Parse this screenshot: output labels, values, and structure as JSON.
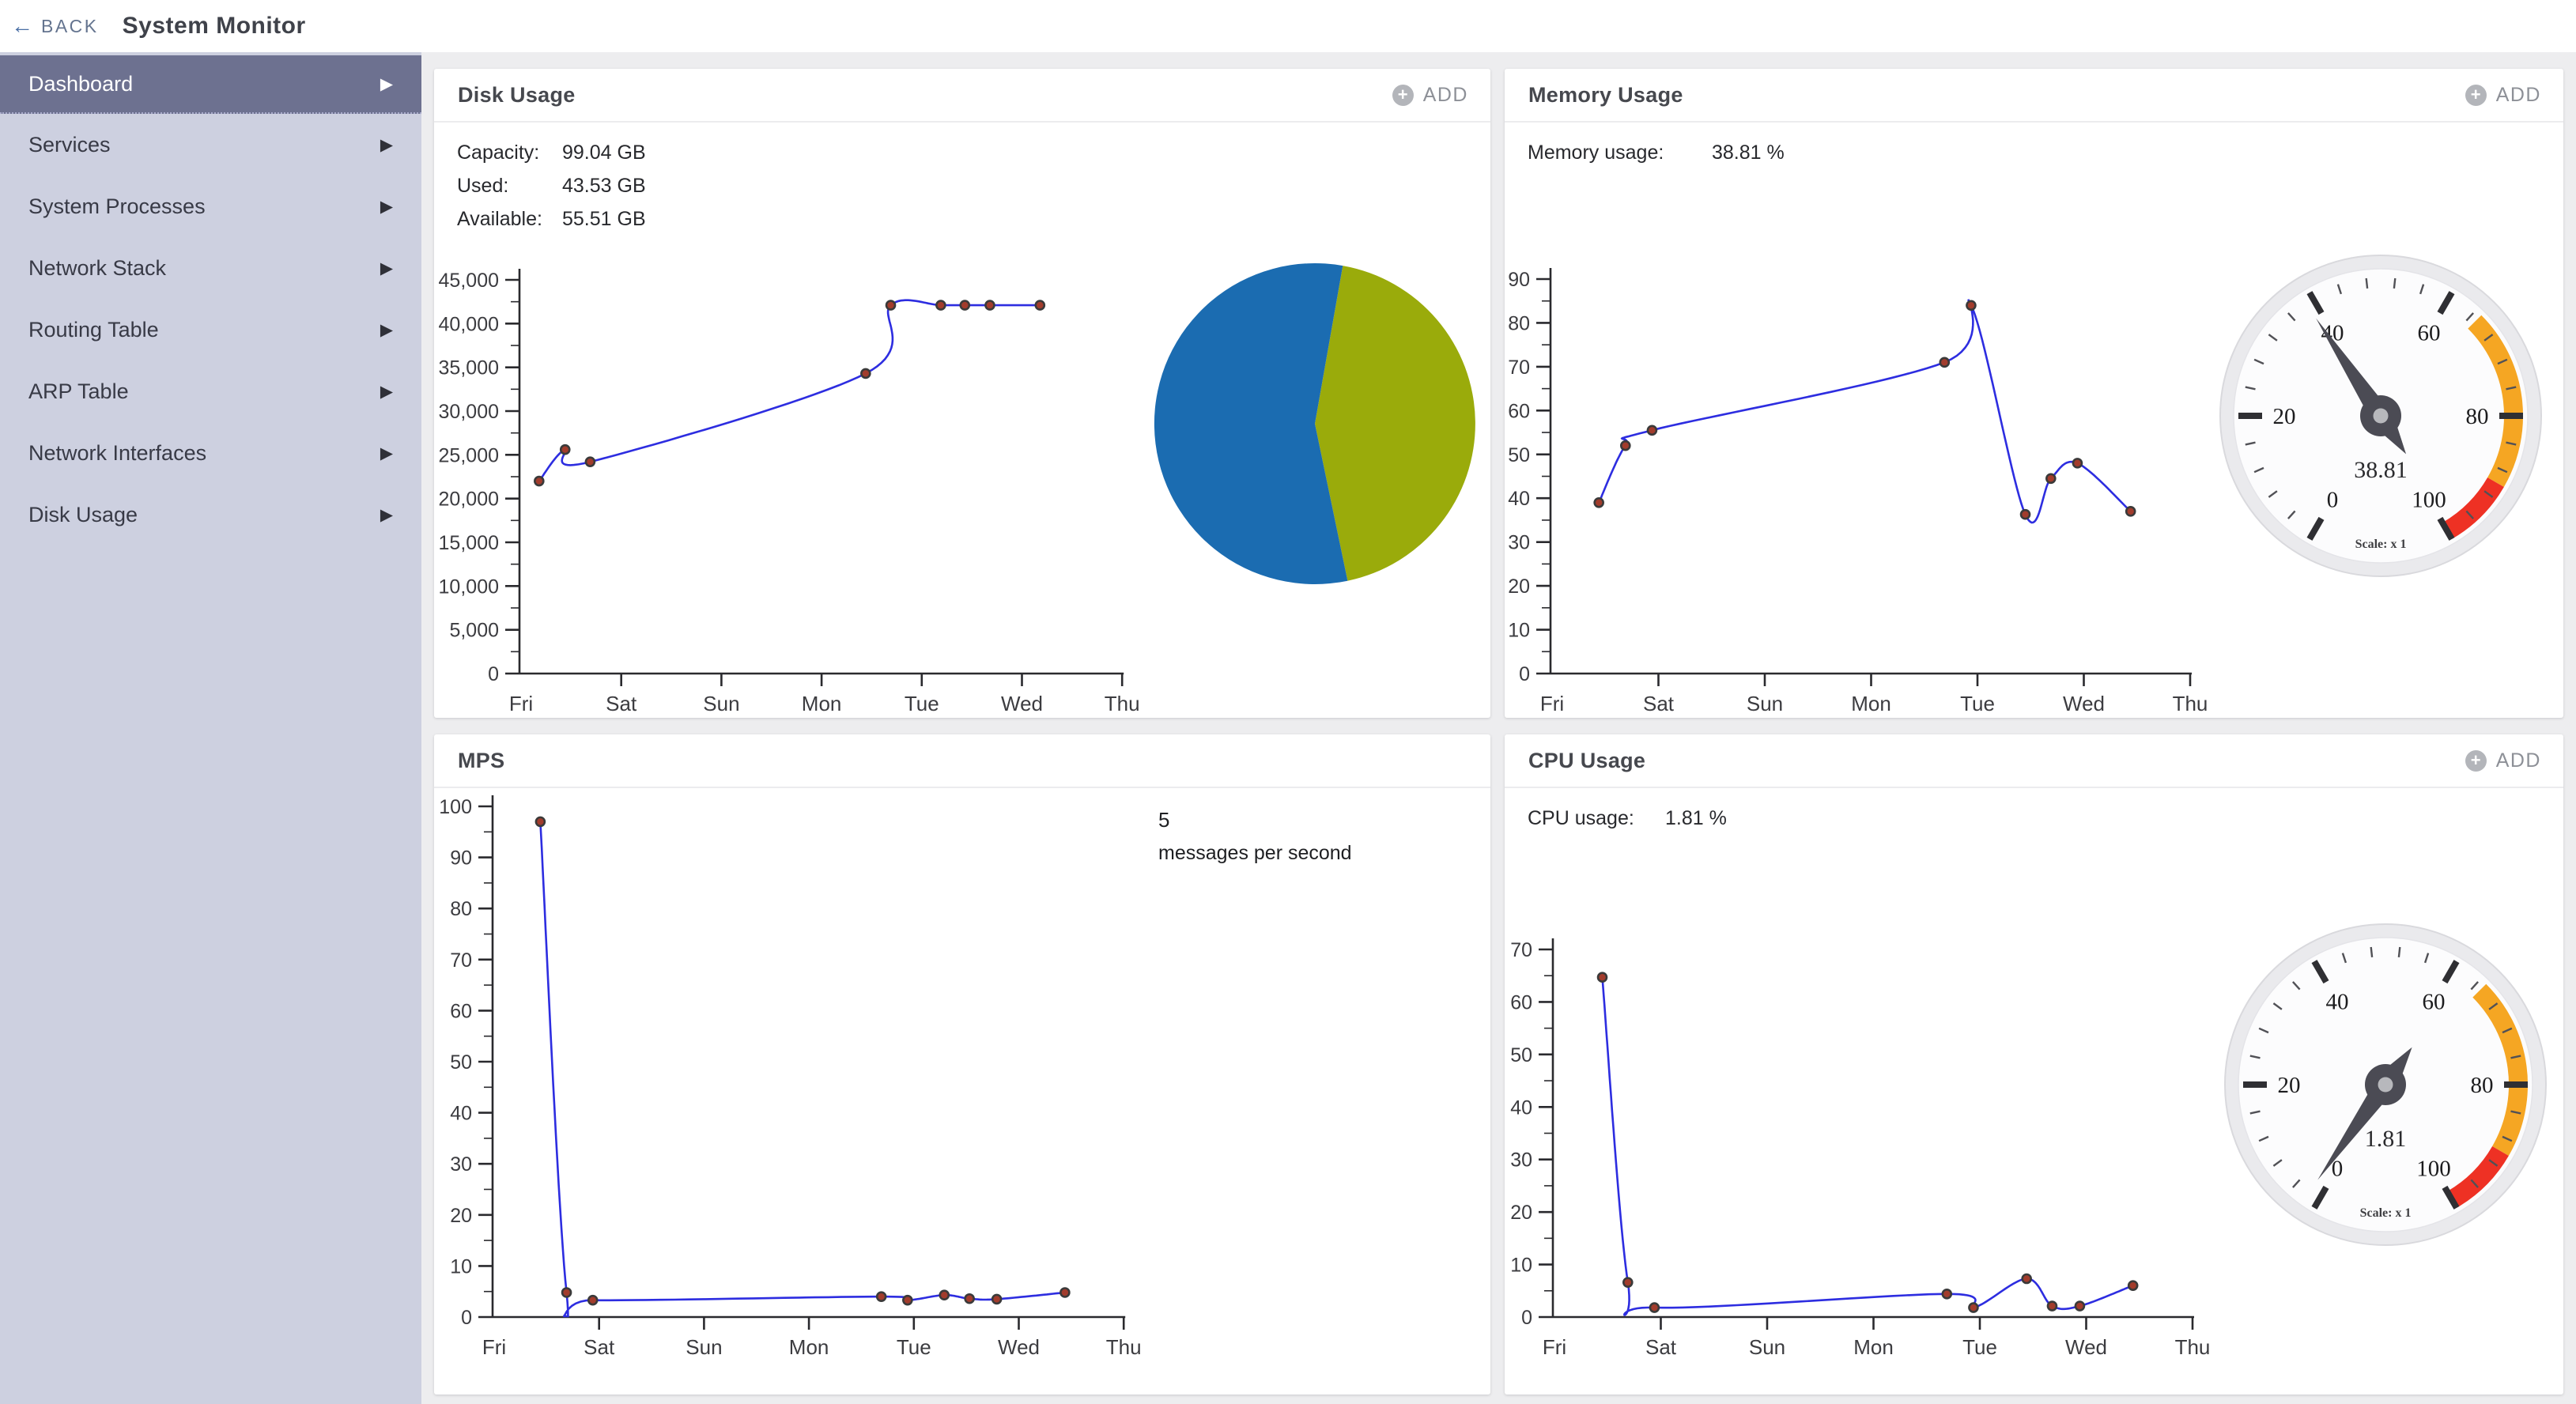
{
  "header": {
    "back_label": "BACK",
    "title": "System Monitor"
  },
  "sidebar": {
    "items": [
      {
        "label": "Dashboard",
        "selected": true
      },
      {
        "label": "Services",
        "selected": false
      },
      {
        "label": "System Processes",
        "selected": false
      },
      {
        "label": "Network Stack",
        "selected": false
      },
      {
        "label": "Routing Table",
        "selected": false
      },
      {
        "label": "ARP Table",
        "selected": false
      },
      {
        "label": "Network Interfaces",
        "selected": false
      },
      {
        "label": "Disk Usage",
        "selected": false
      }
    ]
  },
  "panels": {
    "disk": {
      "title": "Disk Usage",
      "add_label": "ADD",
      "stats": [
        {
          "label": "Capacity:",
          "value": "99.04 GB"
        },
        {
          "label": "Used:",
          "value": "43.53 GB"
        },
        {
          "label": "Available:",
          "value": "55.51 GB"
        }
      ]
    },
    "memory": {
      "title": "Memory Usage",
      "add_label": "ADD",
      "stats": [
        {
          "label": "Memory usage:",
          "value": "38.81 %"
        }
      ]
    },
    "mps": {
      "title": "MPS",
      "big_value": "5",
      "big_label": "messages per second"
    },
    "cpu": {
      "title": "CPU Usage",
      "add_label": "ADD",
      "stats": [
        {
          "label": "CPU usage:",
          "value": "1.81 %"
        }
      ]
    }
  },
  "colors": {
    "sidebar_bg": "#cdd0e0",
    "sidebar_selected": "#6d7190",
    "line": "#2d2de0",
    "marker_fill": "#a23c2c",
    "marker_ring": "#3a3a3a",
    "pie_used": "#9aab0b",
    "pie_available": "#1b6cb1",
    "gauge_warn": "#f5a623",
    "gauge_crit": "#ee3124",
    "axis": "#2a2a2e"
  },
  "chart_data": [
    {
      "id": "disk-line",
      "type": "line",
      "title": "Disk Usage history",
      "x_labels": [
        "Fri",
        "Sat",
        "Sun",
        "Mon",
        "Tue",
        "Wed",
        "Thu"
      ],
      "points": [
        [
          0.18,
          22000
        ],
        [
          0.44,
          25600
        ],
        [
          0.69,
          24200
        ],
        [
          3.44,
          34300
        ],
        [
          3.69,
          42100
        ],
        [
          4.19,
          42100
        ],
        [
          4.43,
          42100
        ],
        [
          4.68,
          42100
        ],
        [
          5.18,
          42100
        ]
      ],
      "ylim": [
        0,
        45000
      ],
      "ytick_step": 5000,
      "y_format": "comma",
      "grid": false,
      "legend": "none"
    },
    {
      "id": "disk-pie",
      "type": "pie",
      "title": "Disk usage split (GB)",
      "start_angle_deg": 80,
      "clockwise": true,
      "slices": [
        {
          "name": "Used",
          "value": 43.53,
          "color": "#9aab0b"
        },
        {
          "name": "Available",
          "value": 55.51,
          "color": "#1b6cb1"
        }
      ]
    },
    {
      "id": "memory-line",
      "type": "line",
      "title": "Memory usage history (%)",
      "x_labels": [
        "Fri",
        "Sat",
        "Sun",
        "Mon",
        "Tue",
        "Wed",
        "Thu"
      ],
      "points": [
        [
          0.44,
          39
        ],
        [
          0.69,
          52
        ],
        [
          0.94,
          55.5
        ],
        [
          3.69,
          71
        ],
        [
          3.94,
          84
        ],
        [
          4.45,
          36.3
        ],
        [
          4.69,
          44.5
        ],
        [
          4.94,
          48
        ],
        [
          5.44,
          37
        ]
      ],
      "ylim": [
        0,
        90
      ],
      "ytick_step": 10,
      "y_format": "plain",
      "grid": false,
      "legend": "none"
    },
    {
      "id": "memory-gauge",
      "type": "gauge",
      "title": "Memory usage gauge",
      "value": 38.81,
      "min": 0,
      "max": 100,
      "major_step": 20,
      "minor_step": 4,
      "bands": [
        {
          "from": 65,
          "to": 90,
          "color": "#f5a623"
        },
        {
          "from": 90,
          "to": 100,
          "color": "#ee3124"
        }
      ],
      "scale_label": "Scale: x 1"
    },
    {
      "id": "mps-line",
      "type": "line",
      "title": "Messages per second history",
      "x_labels": [
        "Fri",
        "Sat",
        "Sun",
        "Mon",
        "Tue",
        "Wed",
        "Thu"
      ],
      "points": [
        [
          0.44,
          97
        ],
        [
          0.69,
          4.8
        ],
        [
          0.94,
          3.3
        ],
        [
          3.69,
          4.0
        ],
        [
          3.94,
          3.3
        ],
        [
          4.29,
          4.3
        ],
        [
          4.53,
          3.6
        ],
        [
          4.79,
          3.5
        ],
        [
          5.44,
          4.8
        ]
      ],
      "ylim": [
        0,
        100
      ],
      "ytick_step": 10,
      "y_format": "plain",
      "grid": false,
      "legend": "none"
    },
    {
      "id": "cpu-line",
      "type": "line",
      "title": "CPU usage history (%)",
      "x_labels": [
        "Fri",
        "Sat",
        "Sun",
        "Mon",
        "Tue",
        "Wed",
        "Thu"
      ],
      "points": [
        [
          0.45,
          64.7
        ],
        [
          0.69,
          6.6
        ],
        [
          0.94,
          1.8
        ],
        [
          3.69,
          4.4
        ],
        [
          3.94,
          1.8
        ],
        [
          4.44,
          7.3
        ],
        [
          4.68,
          2.1
        ],
        [
          4.94,
          2.1
        ],
        [
          5.44,
          6.0
        ]
      ],
      "ylim": [
        0,
        70
      ],
      "ytick_step": 10,
      "y_format": "plain",
      "grid": false,
      "legend": "none"
    },
    {
      "id": "cpu-gauge",
      "type": "gauge",
      "title": "CPU usage gauge",
      "value": 1.81,
      "min": 0,
      "max": 100,
      "major_step": 20,
      "minor_step": 4,
      "bands": [
        {
          "from": 65,
          "to": 90,
          "color": "#f5a623"
        },
        {
          "from": 90,
          "to": 100,
          "color": "#ee3124"
        }
      ],
      "scale_label": "Scale: x 1"
    }
  ]
}
